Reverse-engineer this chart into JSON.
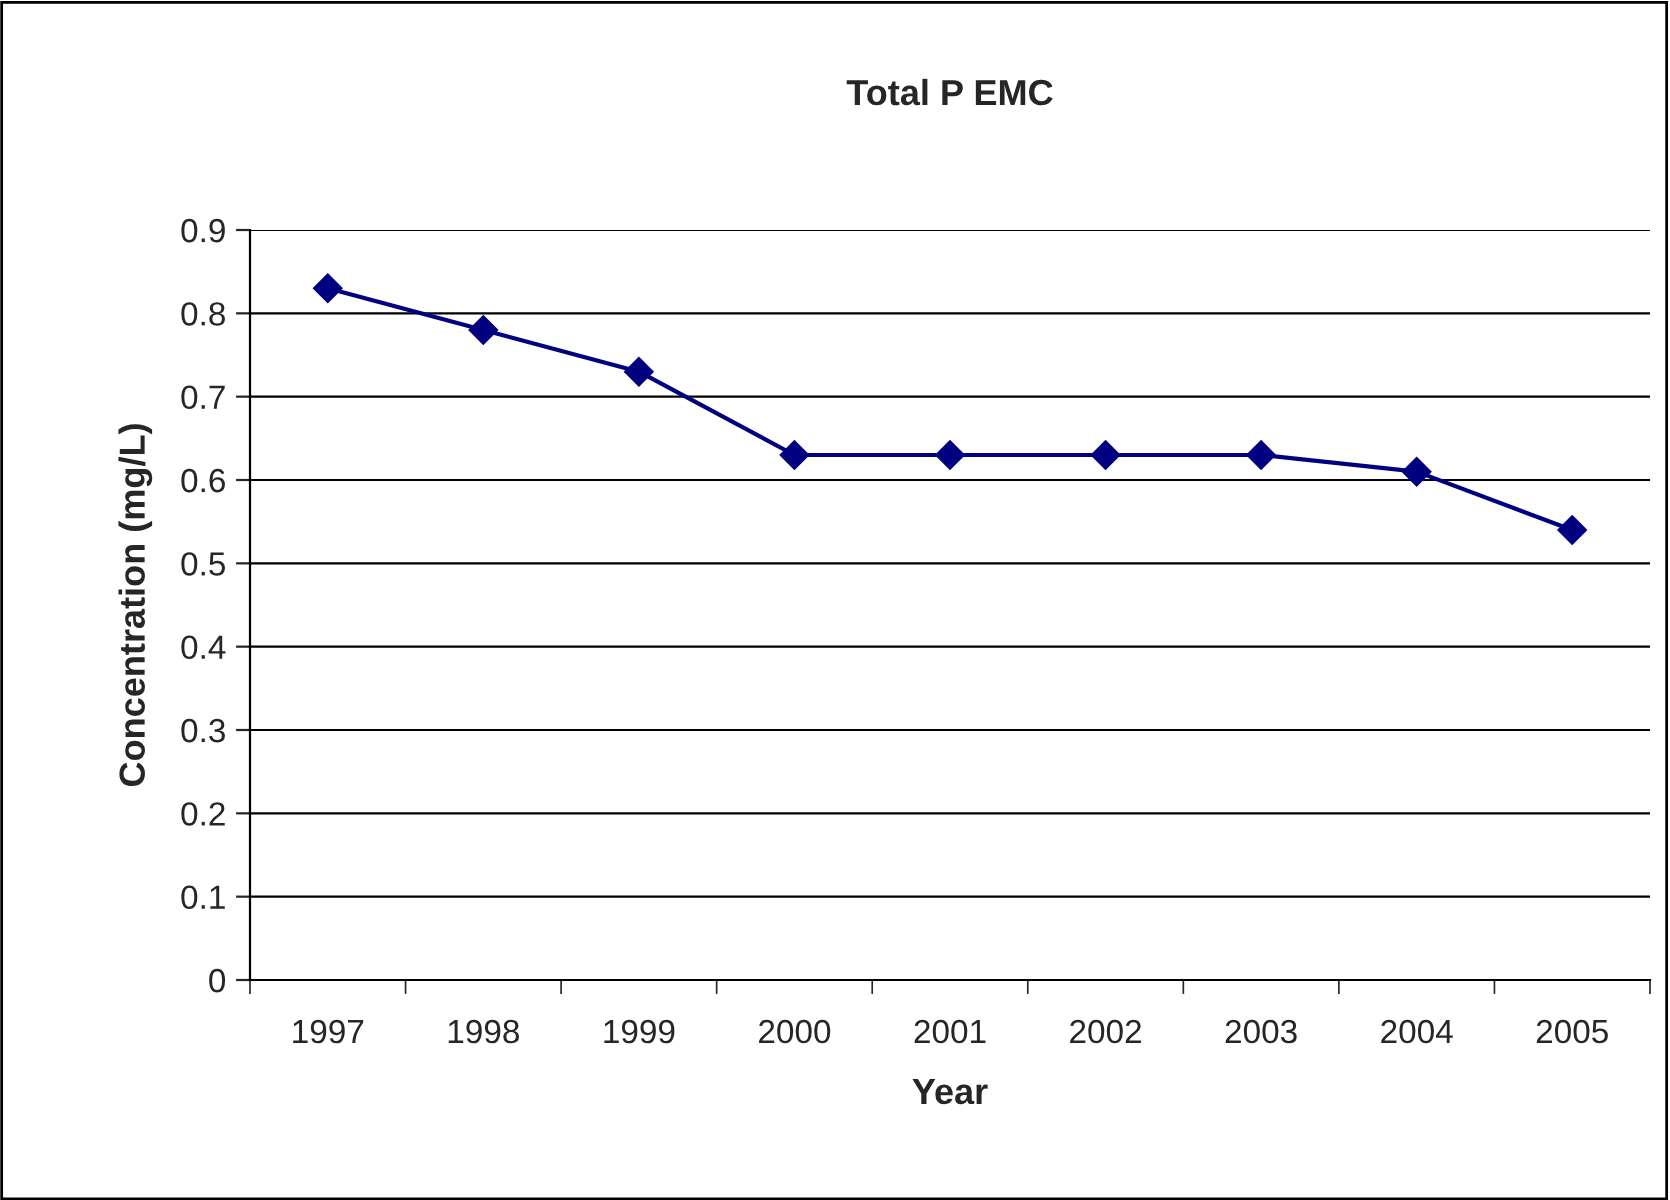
{
  "chart_data": {
    "type": "line",
    "title": "Total P EMC",
    "xlabel": "Year",
    "ylabel": "Concentration (mg/L)",
    "categories": [
      "1997",
      "1998",
      "1999",
      "2000",
      "2001",
      "2002",
      "2003",
      "2004",
      "2005"
    ],
    "series": [
      {
        "color": "#000080",
        "values": [
          0.83,
          0.78,
          0.73,
          0.63,
          0.63,
          0.63,
          0.63,
          0.61,
          0.54
        ]
      }
    ],
    "ylim": [
      0,
      0.9
    ],
    "yticks": [
      {
        "value": 0,
        "label": "0"
      },
      0.1,
      0.2,
      0.3,
      0.4,
      0.5,
      0.6,
      0.7,
      0.8,
      0.9
    ],
    "grid": "y",
    "marker": "diamond",
    "line_style": "solid"
  }
}
